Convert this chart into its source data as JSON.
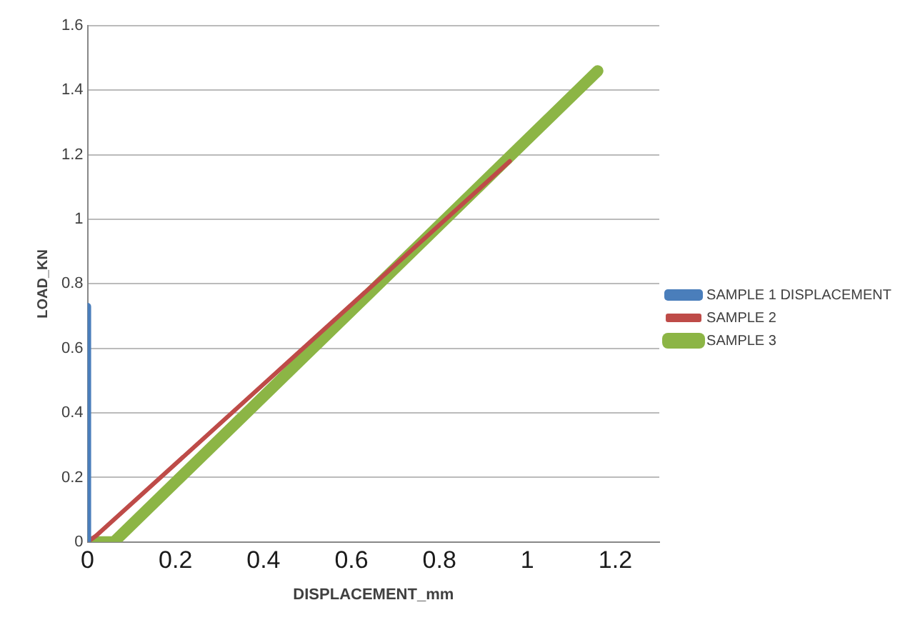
{
  "chart_data": {
    "type": "line",
    "xlabel": "DISPLACEMENT_mm",
    "ylabel": "LOAD_KN",
    "xlim": [
      0,
      1.3
    ],
    "xticks": [
      0,
      0.2,
      0.4,
      0.6,
      0.8,
      1,
      1.2
    ],
    "ylim": [
      0,
      1.6
    ],
    "yticks": [
      0,
      0.2,
      0.4,
      0.6,
      0.8,
      1,
      1.2,
      1.4,
      1.6
    ],
    "grid": "y",
    "legend": "right",
    "series": [
      {
        "name": "SAMPLE 1 DISPLACEMENT",
        "color": "#4a7ebb",
        "x": [
          0,
          0
        ],
        "values": [
          0,
          0.73
        ]
      },
      {
        "name": "SAMPLE 2",
        "color": "#be4b48",
        "x": [
          0,
          0.02,
          0.96
        ],
        "values": [
          0,
          0.02,
          1.18
        ]
      },
      {
        "name": "SAMPLE 3",
        "color": "#8cb545",
        "x": [
          0,
          0.06,
          1.16
        ],
        "values": [
          0,
          0,
          1.46
        ]
      }
    ]
  }
}
